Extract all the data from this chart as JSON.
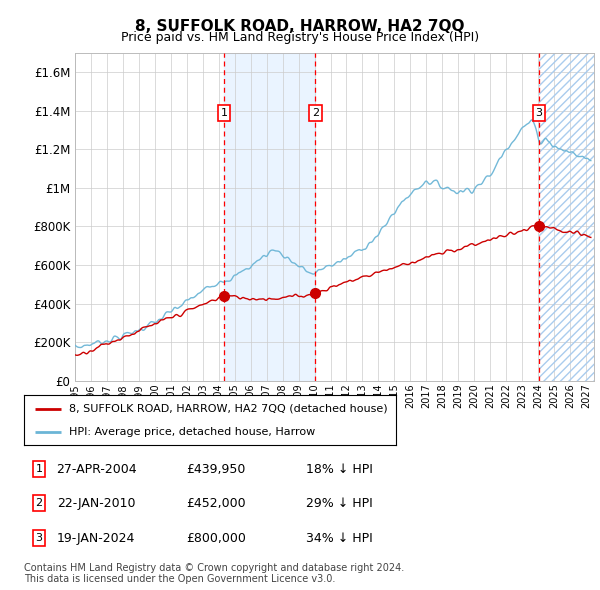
{
  "title": "8, SUFFOLK ROAD, HARROW, HA2 7QQ",
  "subtitle": "Price paid vs. HM Land Registry's House Price Index (HPI)",
  "ylabel_ticks": [
    "£0",
    "£200K",
    "£400K",
    "£600K",
    "£800K",
    "£1M",
    "£1.2M",
    "£1.4M",
    "£1.6M"
  ],
  "ytick_values": [
    0,
    200000,
    400000,
    600000,
    800000,
    1000000,
    1200000,
    1400000,
    1600000
  ],
  "ylim": [
    0,
    1700000
  ],
  "xlim_start": 1995.0,
  "xlim_end": 2027.5,
  "sale_events": [
    {
      "num": 1,
      "year": 2004.32,
      "price": 439950,
      "date": "27-APR-2004",
      "pct": "18%"
    },
    {
      "num": 2,
      "year": 2010.06,
      "price": 452000,
      "date": "22-JAN-2010",
      "pct": "29%"
    },
    {
      "num": 3,
      "year": 2024.05,
      "price": 800000,
      "date": "19-JAN-2024",
      "pct": "34%"
    }
  ],
  "hpi_color": "#6bb5d6",
  "sales_color": "#cc0000",
  "shade_region": [
    2004.32,
    2010.06
  ],
  "hatch_start": 2024.05,
  "legend_line1": "8, SUFFOLK ROAD, HARROW, HA2 7QQ (detached house)",
  "legend_line2": "HPI: Average price, detached house, Harrow",
  "table_rows": [
    {
      "num": 1,
      "date": "27-APR-2004",
      "price": "£439,950",
      "pct": "18% ↓ HPI"
    },
    {
      "num": 2,
      "date": "22-JAN-2010",
      "price": "£452,000",
      "pct": "29% ↓ HPI"
    },
    {
      "num": 3,
      "date": "19-JAN-2024",
      "price": "£800,000",
      "pct": "34% ↓ HPI"
    }
  ],
  "footnote1": "Contains HM Land Registry data © Crown copyright and database right 2024.",
  "footnote2": "This data is licensed under the Open Government Licence v3.0.",
  "background_color": "#ffffff",
  "grid_color": "#cccccc"
}
